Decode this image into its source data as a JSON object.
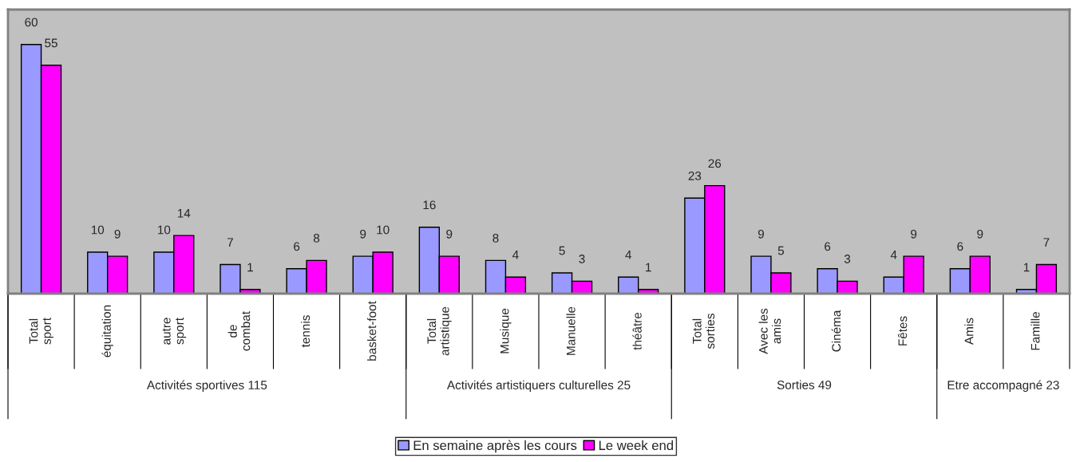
{
  "chart_data": {
    "type": "bar",
    "categories": [
      "Total sport",
      "équitation",
      "autre sport",
      "de combat",
      "tennis",
      "basket-foot",
      "Total artistique",
      "Musique",
      "Manuelle",
      "théâtre",
      "Total sorties",
      "Avec les amis",
      "Cinéma",
      "Fêtes",
      "Amis",
      "Famille"
    ],
    "series": [
      {
        "name": "En semaine après les cours",
        "color": "#9999ff",
        "values": [
          60,
          10,
          10,
          7,
          6,
          9,
          16,
          8,
          5,
          4,
          23,
          9,
          6,
          4,
          6,
          1
        ]
      },
      {
        "name": "Le week end",
        "color": "#ff00ff",
        "values": [
          55,
          9,
          14,
          1,
          8,
          10,
          9,
          4,
          3,
          1,
          26,
          5,
          3,
          9,
          9,
          7
        ]
      }
    ],
    "annotations": [
      "Activités sportives 115",
      "Activités artistiquers culturelles 25",
      "Sorties 49",
      "Etre accompagné 23"
    ],
    "data_labels": true,
    "legend": "bottom"
  }
}
